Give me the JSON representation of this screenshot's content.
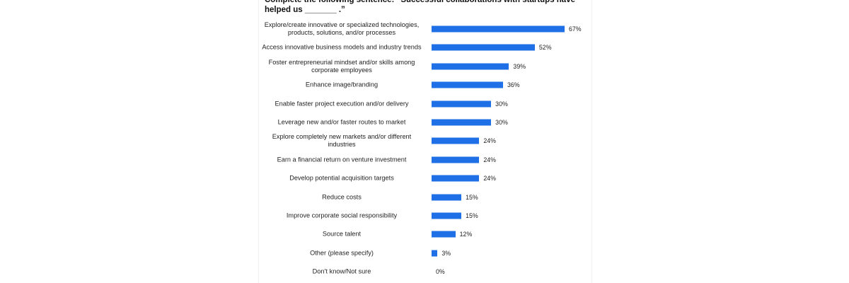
{
  "chart_data": {
    "type": "bar",
    "title": "Complete the following sentence: “Successful collaborations with startups have helped us _______ .”",
    "categories": [
      "Explore/create innovative or specialized technologies, products, solutions, and/or processes",
      "Access innovative business models and industry trends",
      "Foster entrepreneurial mindset and/or skills among corporate employees",
      "Enhance image/branding",
      "Enable faster project execution and/or delivery",
      "Leverage new and/or faster routes to market",
      "Explore completely new markets and/or different industries",
      "Earn a financial return on venture investment",
      "Develop potential acquisition targets",
      "Reduce costs",
      "Improve corporate social responsibility",
      "Source talent",
      "Other (please specify)",
      "Don’t know/Not sure"
    ],
    "values": [
      67,
      52,
      39,
      36,
      30,
      30,
      24,
      24,
      24,
      15,
      15,
      12,
      3,
      0
    ],
    "value_labels": [
      "67%",
      "52%",
      "39%",
      "36%",
      "30%",
      "30%",
      "24%",
      "24%",
      "24%",
      "15%",
      "15%",
      "12%",
      "3%",
      "0%"
    ],
    "color": "#1f6fe6"
  }
}
